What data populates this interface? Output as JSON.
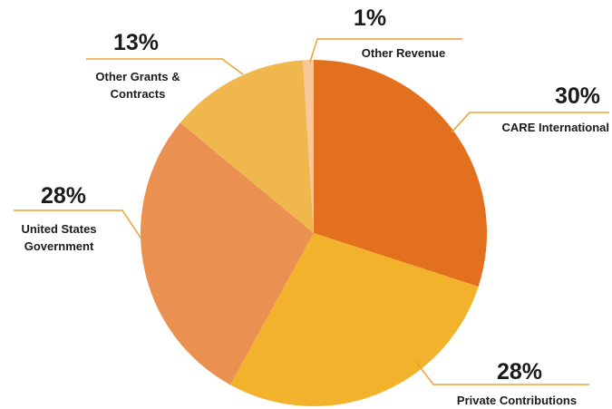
{
  "chart_data": {
    "type": "pie",
    "categories": [
      "CARE International",
      "Private Contributions",
      "United States Government",
      "Other Grants & Contracts",
      "Other Revenue"
    ],
    "values": [
      30,
      28,
      28,
      13,
      1
    ],
    "value_labels": [
      "30%",
      "28%",
      "28%",
      "13%",
      "1%"
    ],
    "colors": [
      "#e3701f",
      "#f3b22b",
      "#ea9152",
      "#f0b74d",
      "#f8c89a"
    ]
  }
}
